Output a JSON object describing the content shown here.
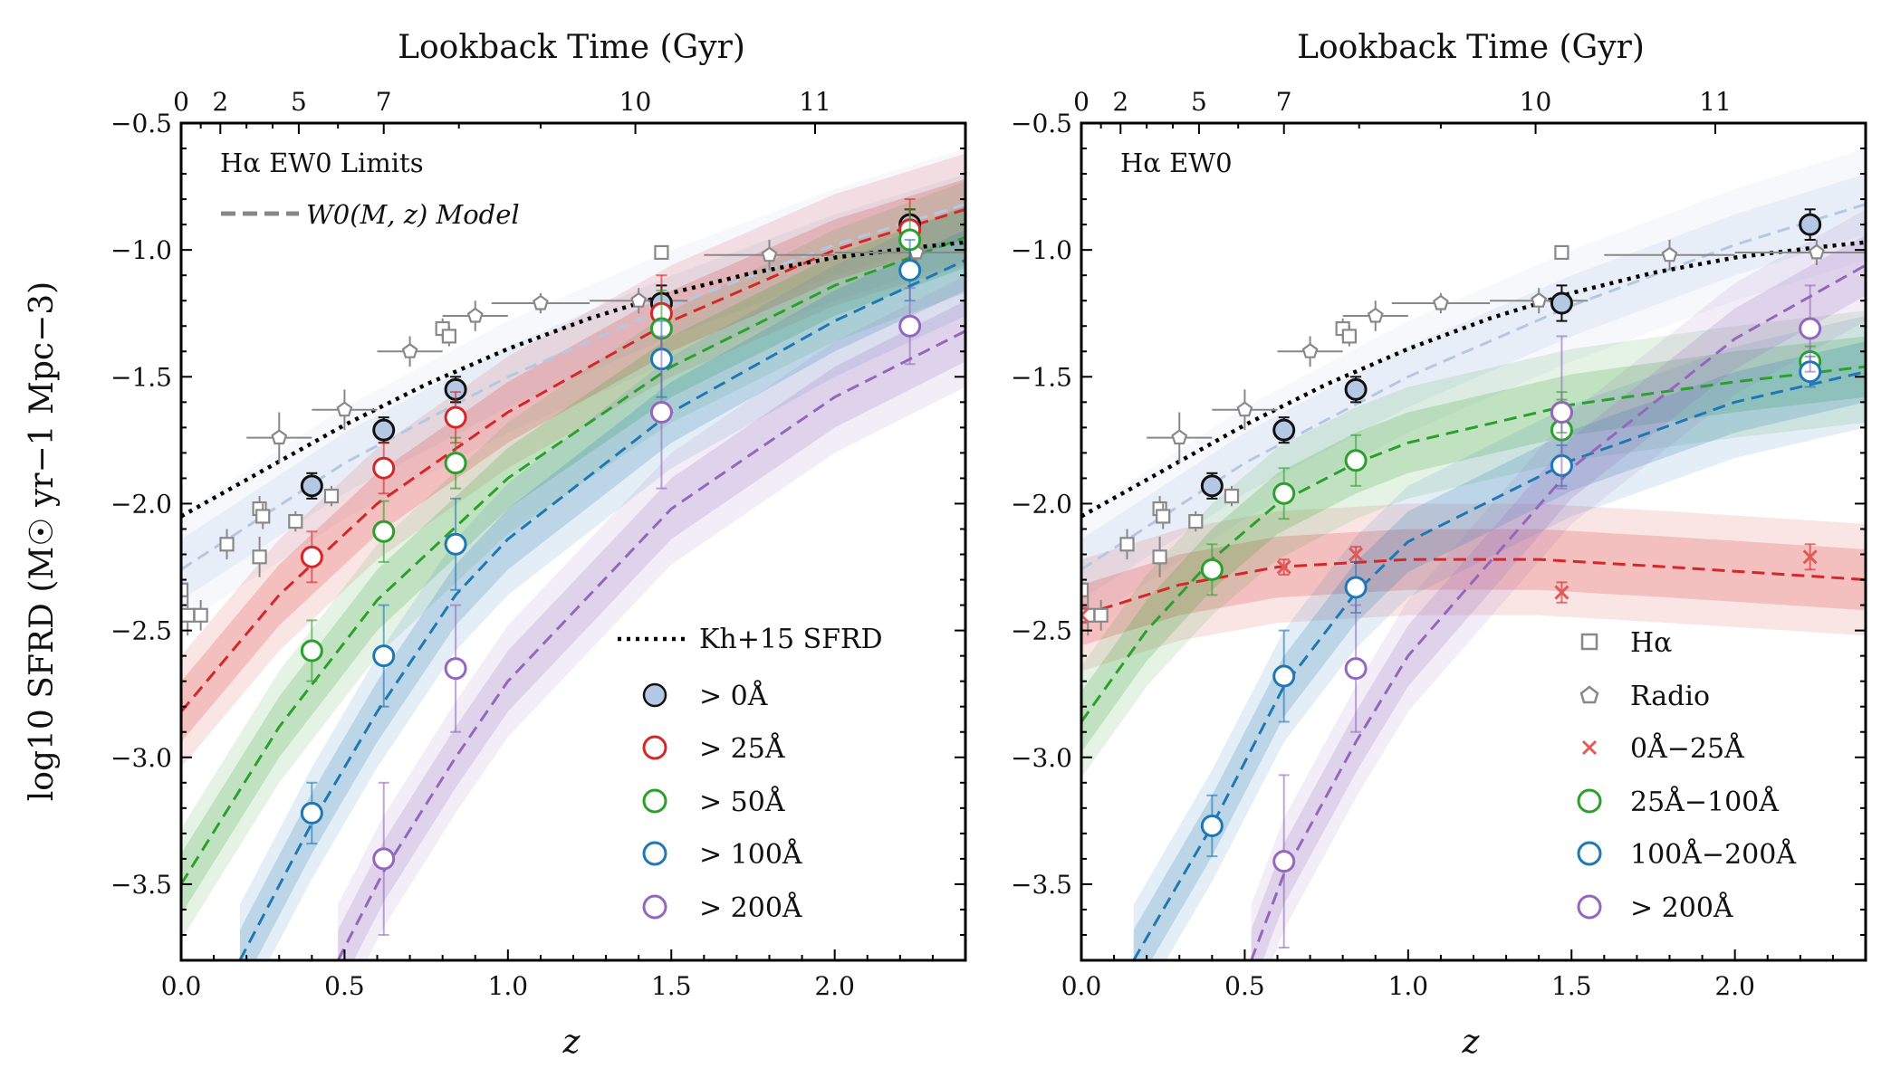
{
  "figure": {
    "ylabel": "log10 SFRD (M☉ yr−1 Mpc−3)",
    "xlabel": "z",
    "top_xlabel": "Lookback Time (Gyr)",
    "colors": {
      "all": "#b4c8e4",
      "gt25": "#d62728",
      "gt50": "#2ca02c",
      "gt100": "#1f77b4",
      "gt200": "#9467bd",
      "ref": "#888888",
      "kh15": "#000000"
    }
  },
  "chart_data": [
    {
      "type": "scatter",
      "panel": "left",
      "panel_label": "Hα EW0 Limits",
      "model_label": "W0(M, z) Model",
      "xlabel": "z",
      "ylabel": "log10 SFRD (M☉ yr−1 Mpc−3)",
      "xlim": [
        0.0,
        2.4
      ],
      "ylim": [
        -3.8,
        -0.5
      ],
      "xticks": [
        0.0,
        0.5,
        1.0,
        1.5,
        2.0
      ],
      "yticks": [
        -3.5,
        -3.0,
        -2.5,
        -2.0,
        -1.5,
        -1.0,
        -0.5
      ],
      "top_axis": {
        "label": "Lookback Time (Gyr)",
        "ticks": [
          0,
          2,
          5,
          7,
          10,
          11
        ],
        "z_positions": [
          0.0,
          0.12,
          0.36,
          0.62,
          1.39,
          1.94
        ]
      },
      "series": [
        {
          "name": "> 0Å",
          "key": "all",
          "filled": true,
          "z": [
            0.4,
            0.62,
            0.84,
            1.47,
            2.23
          ],
          "y": [
            -1.93,
            -1.71,
            -1.55,
            -1.21,
            -0.9
          ],
          "err": [
            0.05,
            0.05,
            0.05,
            0.07,
            0.06
          ],
          "model": [
            [
              0.0,
              -2.26
            ],
            [
              0.5,
              -1.84
            ],
            [
              1.0,
              -1.5
            ],
            [
              1.5,
              -1.22
            ],
            [
              2.0,
              -0.98
            ],
            [
              2.4,
              -0.82
            ]
          ]
        },
        {
          "name": "> 25Å",
          "key": "gt25",
          "filled": false,
          "z": [
            0.4,
            0.62,
            0.84,
            1.47,
            2.23
          ],
          "y": [
            -2.21,
            -1.86,
            -1.66,
            -1.25,
            -0.92
          ],
          "err": [
            0.1,
            0.1,
            0.1,
            0.15,
            0.12
          ],
          "model": [
            [
              0.0,
              -2.82
            ],
            [
              0.3,
              -2.36
            ],
            [
              0.6,
              -2.0
            ],
            [
              1.0,
              -1.64
            ],
            [
              1.5,
              -1.28
            ],
            [
              2.0,
              -1.0
            ],
            [
              2.4,
              -0.84
            ]
          ]
        },
        {
          "name": "> 50Å",
          "key": "gt50",
          "filled": false,
          "z": [
            0.4,
            0.62,
            0.84,
            1.47,
            2.23
          ],
          "y": [
            -2.58,
            -2.11,
            -1.84,
            -1.31,
            -0.96
          ],
          "err": [
            0.12,
            0.12,
            0.1,
            0.15,
            0.12
          ],
          "model": [
            [
              0.0,
              -3.5
            ],
            [
              0.3,
              -2.88
            ],
            [
              0.6,
              -2.38
            ],
            [
              1.0,
              -1.9
            ],
            [
              1.5,
              -1.46
            ],
            [
              2.0,
              -1.14
            ],
            [
              2.4,
              -0.95
            ]
          ]
        },
        {
          "name": "> 100Å",
          "key": "gt100",
          "filled": false,
          "z": [
            0.4,
            0.62,
            0.84,
            1.47,
            2.23
          ],
          "y": [
            -3.22,
            -2.6,
            -2.16,
            -1.43,
            -1.08
          ],
          "err": [
            0.12,
            0.2,
            0.18,
            0.15,
            0.12
          ],
          "model": [
            [
              0.18,
              -3.8
            ],
            [
              0.4,
              -3.26
            ],
            [
              0.6,
              -2.82
            ],
            [
              0.84,
              -2.36
            ],
            [
              1.0,
              -2.14
            ],
            [
              1.5,
              -1.64
            ],
            [
              2.0,
              -1.28
            ],
            [
              2.4,
              -1.04
            ]
          ]
        },
        {
          "name": "> 200Å",
          "key": "gt200",
          "filled": false,
          "z": [
            0.62,
            0.84,
            1.47,
            2.23
          ],
          "y": [
            -3.4,
            -2.65,
            -1.64,
            -1.3
          ],
          "err": [
            0.3,
            0.25,
            0.3,
            0.15
          ],
          "model": [
            [
              0.48,
              -3.8
            ],
            [
              0.62,
              -3.45
            ],
            [
              0.84,
              -3.0
            ],
            [
              1.0,
              -2.7
            ],
            [
              1.5,
              -2.02
            ],
            [
              2.0,
              -1.58
            ],
            [
              2.4,
              -1.32
            ]
          ]
        }
      ],
      "kh15": {
        "name": "Kh+15 SFRD",
        "curve": [
          [
            0.0,
            -2.05
          ],
          [
            0.25,
            -1.87
          ],
          [
            0.5,
            -1.69
          ],
          [
            0.75,
            -1.53
          ],
          [
            1.0,
            -1.39
          ],
          [
            1.25,
            -1.27
          ],
          [
            1.5,
            -1.17
          ],
          [
            1.75,
            -1.09
          ],
          [
            2.0,
            -1.03
          ],
          [
            2.25,
            -0.99
          ],
          [
            2.4,
            -0.97
          ]
        ]
      },
      "reference": {
        "halpha": {
          "name": "Hα",
          "z": [
            0.0,
            0.02,
            0.06,
            0.14,
            0.24,
            0.24,
            0.25,
            0.35,
            0.46,
            0.8,
            0.82,
            1.47
          ],
          "y": [
            -2.34,
            -2.44,
            -2.44,
            -2.16,
            -2.02,
            -2.21,
            -2.05,
            -2.07,
            -1.97,
            -1.31,
            -1.34,
            -1.01
          ],
          "err": [
            0.08,
            0.08,
            0.06,
            0.06,
            0.05,
            0.08,
            0.05,
            0.04,
            0.04,
            0.04,
            0.04,
            0.0
          ]
        },
        "radio": {
          "name": "Radio",
          "z": [
            0.3,
            0.5,
            0.7,
            0.9,
            1.1,
            1.4,
            1.8,
            2.25
          ],
          "y": [
            -1.74,
            -1.63,
            -1.4,
            -1.26,
            -1.21,
            -1.2,
            -1.02,
            -1.01
          ],
          "xerr": [
            0.1,
            0.1,
            0.1,
            0.1,
            0.15,
            0.15,
            0.2,
            0.25
          ],
          "err": [
            0.1,
            0.08,
            0.06,
            0.06,
            0.04,
            0.05,
            0.06,
            0.05
          ]
        }
      }
    },
    {
      "type": "scatter",
      "panel": "right",
      "panel_label": "Hα EW0",
      "xlabel": "z",
      "xlim": [
        0.0,
        2.4
      ],
      "ylim": [
        -3.8,
        -0.5
      ],
      "xticks": [
        0.0,
        0.5,
        1.0,
        1.5,
        2.0
      ],
      "yticks": [
        -3.5,
        -3.0,
        -2.5,
        -2.0,
        -1.5,
        -1.0,
        -0.5
      ],
      "top_axis": {
        "label": "Lookback Time (Gyr)",
        "ticks": [
          0,
          2,
          5,
          7,
          10,
          11
        ],
        "z_positions": [
          0.0,
          0.12,
          0.36,
          0.62,
          1.39,
          1.94
        ]
      },
      "series": [
        {
          "name": "> 0Å",
          "key": "all",
          "filled": true,
          "z": [
            0.4,
            0.62,
            0.84,
            1.47,
            2.23
          ],
          "y": [
            -1.93,
            -1.71,
            -1.55,
            -1.21,
            -0.9
          ],
          "err": [
            0.05,
            0.05,
            0.05,
            0.07,
            0.06
          ],
          "model": [
            [
              0.0,
              -2.26
            ],
            [
              0.5,
              -1.84
            ],
            [
              1.0,
              -1.5
            ],
            [
              1.5,
              -1.22
            ],
            [
              2.0,
              -0.98
            ],
            [
              2.4,
              -0.82
            ]
          ]
        },
        {
          "name": "0Å−25Å",
          "key": "gt25",
          "marker": "x",
          "z": [
            0.0,
            0.62,
            0.84,
            1.47,
            2.23
          ],
          "y": [
            -2.44,
            -2.25,
            -2.2,
            -2.35,
            -2.21
          ],
          "err": [
            0.03,
            0.03,
            0.03,
            0.04,
            0.05
          ],
          "model": [
            [
              0.0,
              -2.44
            ],
            [
              0.3,
              -2.32
            ],
            [
              0.6,
              -2.25
            ],
            [
              1.0,
              -2.22
            ],
            [
              1.4,
              -2.22
            ],
            [
              1.8,
              -2.25
            ],
            [
              2.4,
              -2.3
            ]
          ]
        },
        {
          "name": "25Å−100Å",
          "key": "gt50",
          "filled": false,
          "z": [
            0.4,
            0.62,
            0.84,
            1.47,
            1.47,
            2.23
          ],
          "y": [
            -2.26,
            -1.96,
            -1.83,
            -1.71,
            -1.64,
            -1.44
          ],
          "err": [
            0.1,
            0.1,
            0.1,
            0.12,
            0.08,
            0.06
          ],
          "model": [
            [
              0.0,
              -2.86
            ],
            [
              0.2,
              -2.5
            ],
            [
              0.4,
              -2.22
            ],
            [
              0.6,
              -2.0
            ],
            [
              0.84,
              -1.84
            ],
            [
              1.0,
              -1.76
            ],
            [
              1.5,
              -1.61
            ],
            [
              2.0,
              -1.52
            ],
            [
              2.4,
              -1.46
            ]
          ]
        },
        {
          "name": "100Å−200Å",
          "key": "gt100",
          "filled": false,
          "z": [
            0.4,
            0.62,
            0.84,
            1.47,
            2.23
          ],
          "y": [
            -3.27,
            -2.68,
            -2.33,
            -1.85,
            -1.48
          ],
          "err": [
            0.12,
            0.18,
            0.1,
            0.08,
            0.06
          ],
          "model": [
            [
              0.16,
              -3.8
            ],
            [
              0.4,
              -3.27
            ],
            [
              0.62,
              -2.72
            ],
            [
              0.84,
              -2.35
            ],
            [
              1.0,
              -2.15
            ],
            [
              1.5,
              -1.83
            ],
            [
              2.0,
              -1.6
            ],
            [
              2.4,
              -1.48
            ]
          ]
        },
        {
          "name": "> 200Å",
          "key": "gt200",
          "filled": false,
          "z": [
            0.62,
            0.84,
            1.47,
            2.23
          ],
          "y": [
            -3.41,
            -2.65,
            -1.64,
            -1.31
          ],
          "err": [
            0.34,
            0.25,
            0.3,
            0.17
          ],
          "model": [
            [
              0.52,
              -3.8
            ],
            [
              0.62,
              -3.46
            ],
            [
              0.84,
              -2.94
            ],
            [
              1.0,
              -2.6
            ],
            [
              1.5,
              -1.86
            ],
            [
              2.0,
              -1.35
            ],
            [
              2.4,
              -1.06
            ]
          ]
        }
      ],
      "kh15": {
        "name": "Kh+15 SFRD",
        "curve": [
          [
            0.0,
            -2.05
          ],
          [
            0.25,
            -1.87
          ],
          [
            0.5,
            -1.69
          ],
          [
            0.75,
            -1.53
          ],
          [
            1.0,
            -1.39
          ],
          [
            1.25,
            -1.27
          ],
          [
            1.5,
            -1.17
          ],
          [
            1.75,
            -1.09
          ],
          [
            2.0,
            -1.03
          ],
          [
            2.25,
            -0.99
          ],
          [
            2.4,
            -0.97
          ]
        ]
      },
      "reference": {
        "halpha": {
          "name": "Hα",
          "z": [
            0.0,
            0.02,
            0.06,
            0.14,
            0.24,
            0.24,
            0.25,
            0.35,
            0.46,
            0.8,
            0.82,
            1.47
          ],
          "y": [
            -2.34,
            -2.44,
            -2.44,
            -2.16,
            -2.02,
            -2.21,
            -2.05,
            -2.07,
            -1.97,
            -1.31,
            -1.34,
            -1.01
          ],
          "err": [
            0.08,
            0.08,
            0.06,
            0.06,
            0.05,
            0.08,
            0.05,
            0.04,
            0.04,
            0.04,
            0.04,
            0.0
          ]
        },
        "radio": {
          "name": "Radio",
          "z": [
            0.3,
            0.5,
            0.7,
            0.9,
            1.1,
            1.4,
            1.8,
            2.25
          ],
          "y": [
            -1.74,
            -1.63,
            -1.4,
            -1.26,
            -1.21,
            -1.2,
            -1.02,
            -1.01
          ],
          "xerr": [
            0.1,
            0.1,
            0.1,
            0.1,
            0.15,
            0.15,
            0.2,
            0.25
          ],
          "err": [
            0.1,
            0.08,
            0.06,
            0.06,
            0.04,
            0.05,
            0.06,
            0.05
          ]
        }
      }
    }
  ],
  "legends": {
    "left": {
      "kh15": "Kh+15 SFRD",
      "items": [
        "> 0Å",
        "> 25Å",
        "> 50Å",
        "> 100Å",
        "> 200Å"
      ]
    },
    "right": {
      "items": [
        "Hα",
        "Radio",
        "0Å−25Å",
        "25Å−100Å",
        "100Å−200Å",
        "> 200Å"
      ]
    }
  }
}
